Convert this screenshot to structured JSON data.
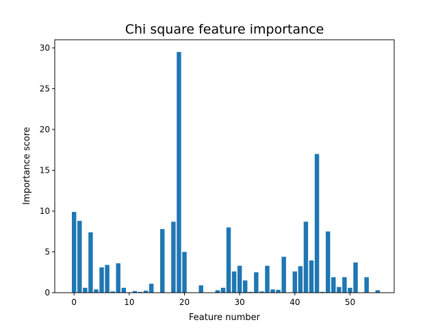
{
  "chart_data": {
    "type": "bar",
    "title": "Chi square feature importance",
    "xlabel": "Feature number",
    "ylabel": "Importance score",
    "xlim": [
      -3.5,
      58
    ],
    "ylim": [
      0,
      31
    ],
    "xticks": [
      0,
      10,
      20,
      30,
      40,
      50
    ],
    "yticks": [
      0,
      5,
      10,
      15,
      20,
      25,
      30
    ],
    "bar_color": "#1f77b4",
    "bar_width": 0.8,
    "grid": false,
    "legend": "none",
    "x": [
      0,
      1,
      2,
      3,
      4,
      5,
      6,
      7,
      8,
      9,
      10,
      11,
      12,
      13,
      14,
      15,
      16,
      17,
      18,
      19,
      20,
      21,
      22,
      23,
      24,
      25,
      26,
      27,
      28,
      29,
      30,
      31,
      32,
      33,
      34,
      35,
      36,
      37,
      38,
      39,
      40,
      41,
      42,
      43,
      44,
      45,
      46,
      47,
      48,
      49,
      50,
      51,
      52,
      53,
      54,
      55
    ],
    "values": [
      9.9,
      8.8,
      0.6,
      7.4,
      0.4,
      3.1,
      3.4,
      0.15,
      3.6,
      0.6,
      0.05,
      0.2,
      0.1,
      0.25,
      1.1,
      0.0,
      7.8,
      0.0,
      8.7,
      29.5,
      5.0,
      0.0,
      0.0,
      0.9,
      0.0,
      0.0,
      0.3,
      0.6,
      8.0,
      2.6,
      3.3,
      1.5,
      0.1,
      2.5,
      0.15,
      3.3,
      0.4,
      0.35,
      4.4,
      0.0,
      2.6,
      3.25,
      8.7,
      3.95,
      17.0,
      0.1,
      7.5,
      1.9,
      0.7,
      1.9,
      0.6,
      3.7,
      0.0,
      1.9,
      0.0,
      0.3
    ]
  }
}
